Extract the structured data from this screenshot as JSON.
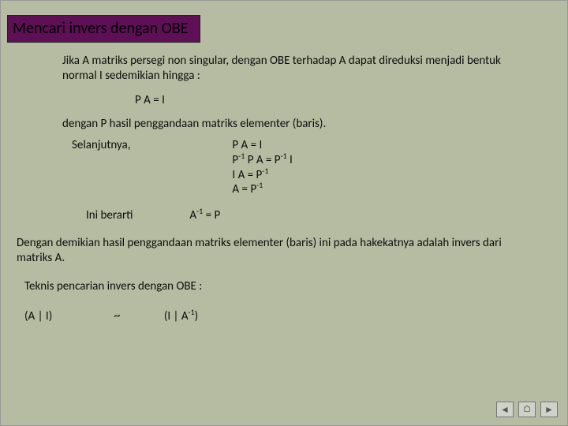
{
  "colors": {
    "slide_bg": "#b5bca2",
    "title_bg": "#5e0f56",
    "text": "#0d0d0d",
    "nav_border": "#777777",
    "nav_bg": "#cfd2c8"
  },
  "title": "Mencari invers dengan OBE",
  "para1": "Jika A matriks persegi non singular, dengan OBE terhadap A dapat direduksi menjadi bentuk normal I sedemikian hingga :",
  "eq1": "P A = I",
  "para2": "dengan P hasil penggandaan matriks elementer (baris).",
  "selanjutnya_label": "Selanjutnya,",
  "derivation": {
    "l1": "P A = I",
    "l2_pre": "P",
    "l2_sup": "-1",
    "l2_mid": " P A = P",
    "l2_sup2": "-1",
    "l2_post": " I",
    "l3_pre": "I A = P",
    "l3_sup": "-1",
    "l4_pre": "A = P",
    "l4_sup": "-1"
  },
  "ini_berarti": "Ini berarti",
  "conclusion_pre": "A",
  "conclusion_sup": "-1",
  "conclusion_post": " = P",
  "para3": "Dengan demikian hasil penggandaan matriks elementer (baris) ini pada hakekatnya adalah invers dari matriks A.",
  "para4": "Teknis pencarian invers dengan OBE :",
  "transform": {
    "left": "(A | I)",
    "tilde": "~",
    "right_pre": "(I | A",
    "right_sup": "-1",
    "right_post": ")"
  },
  "nav": {
    "prev": "◄",
    "home": "⌂",
    "next": "►"
  }
}
